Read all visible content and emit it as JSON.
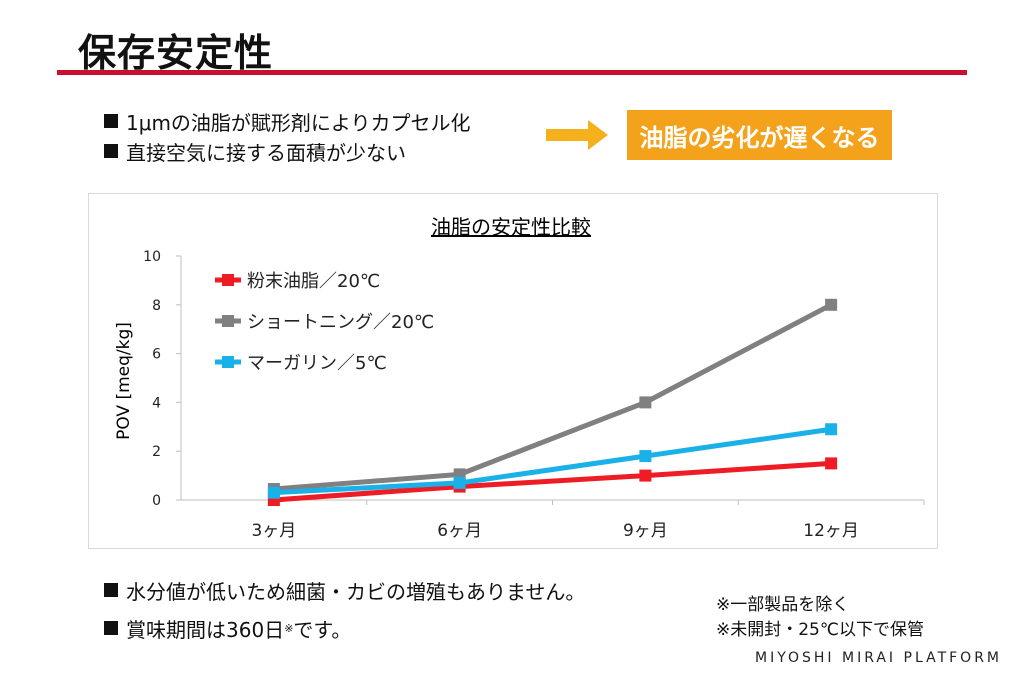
{
  "header": {
    "title": "保存安定性"
  },
  "bullets_top": [
    "1μmの油脂が賦形剤によりカプセル化",
    "直接空気に接する面積が少ない"
  ],
  "callout": {
    "text": "油脂の劣化が遅くなる",
    "color": "#f4a21b"
  },
  "colors": {
    "accent_rule": "#c8102e",
    "arrow": "#f4b11b"
  },
  "chart_data": {
    "type": "line",
    "title": "油脂の安定性比較",
    "ylabel": "POV [meq/kg]",
    "xlabel": "",
    "categories": [
      "3ヶ月",
      "6ヶ月",
      "9ヶ月",
      "12ヶ月"
    ],
    "ylim": [
      0,
      10
    ],
    "yticks": [
      0,
      2,
      4,
      6,
      8,
      10
    ],
    "grid": false,
    "legend": "top-left",
    "series": [
      {
        "name": "粉末油脂／20℃",
        "color": "#ee1c25",
        "values": [
          0.0,
          0.55,
          1.0,
          1.5
        ]
      },
      {
        "name": "ショートニング／20℃",
        "color": "#808080",
        "values": [
          0.45,
          1.05,
          4.0,
          8.0
        ]
      },
      {
        "name": "マーガリン／5℃",
        "color": "#1ab0e8",
        "values": [
          0.3,
          0.7,
          1.8,
          2.9
        ]
      }
    ]
  },
  "bullets_bottom": {
    "line1": "水分値が低いため細菌・カビの増殖もありません。",
    "line2_text": "賞味期間は360日",
    "line2_mark": "※",
    "line2_suffix": "です。"
  },
  "notes": [
    "※一部製品を除く",
    "※未開封・25℃以下で保管"
  ],
  "footer": {
    "brand": "MIYOSHI MIRAI PLATFORM"
  }
}
